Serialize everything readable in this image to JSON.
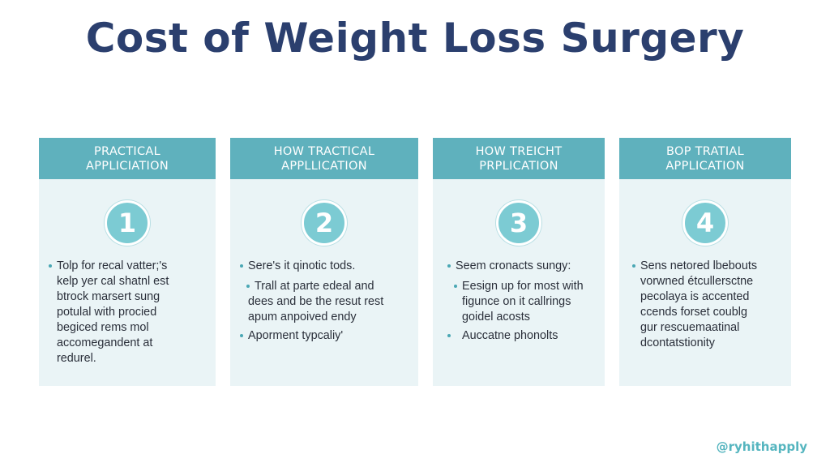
{
  "title": "Cost of Weight Loss Surgery",
  "accent_color": "#5fb1bd",
  "title_color": "#2b3f6e",
  "cards": [
    {
      "header": [
        "PRACTICAL",
        "APPLICIATION"
      ],
      "number": "1",
      "items": [
        [
          "Tolp for recal vatter;'s",
          "kelp yer cal shatnl est",
          "btrock marsert sung",
          "potulal with procied",
          "begiced rems mol",
          "accomegandent at",
          "redurel."
        ]
      ]
    },
    {
      "header": [
        "HOW TRACTICAL",
        "APPLLICATION"
      ],
      "number": "2",
      "items": [
        [
          "Sere's it qinotic tods."
        ],
        [
          "Trall at parte edeal and",
          "dees and be the resut rest",
          "apum anpoived endy"
        ],
        [
          "Aporment typcaliy'"
        ]
      ]
    },
    {
      "header": [
        "HOW TREICHT",
        "PRPLICATION"
      ],
      "number": "3",
      "items": [
        [
          "Seem cronacts sungy:"
        ],
        [
          "Eesign up for most with",
          "figunce on it callrings",
          "goidel acosts"
        ],
        [
          "Auccatne phonolts"
        ]
      ]
    },
    {
      "header": [
        "BOP TRATIAL",
        "APPLICATION"
      ],
      "number": "4",
      "items": [
        [
          "Sens netored lbebouts",
          "vorwned étcullersctne",
          "pecolaya is accented",
          "ccends forset coublg",
          "gur rescuemaatinal",
          "dcontatstionity"
        ]
      ]
    }
  ],
  "handle": "@ryhithapply"
}
